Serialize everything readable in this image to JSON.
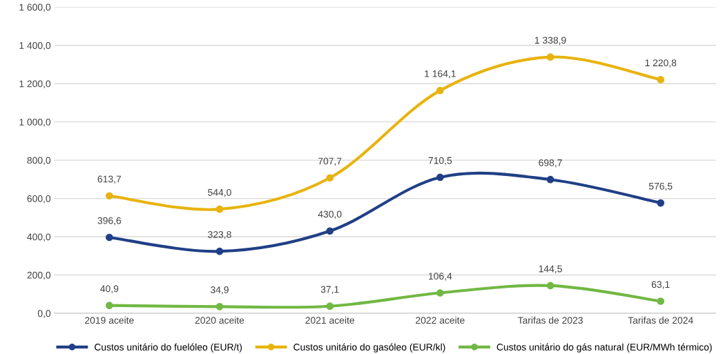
{
  "chart_data": {
    "type": "line",
    "categories": [
      "2019 aceite",
      "2020 aceite",
      "2021 aceite",
      "2022 aceite",
      "Tarifas de 2023",
      "Tarifas de 2024"
    ],
    "series": [
      {
        "name": "Custos unitário do fuelóleo (EUR/t)",
        "color": "#203f86",
        "values": [
          396.6,
          323.8,
          430.0,
          710.5,
          698.7,
          576.5
        ],
        "value_labels": [
          "396,6",
          "323,8",
          "430,0",
          "710,5",
          "698,7",
          "576,5"
        ]
      },
      {
        "name": "Custos unitário do gasóleo (EUR/kl)",
        "color": "#e8b30f",
        "values": [
          613.7,
          544.0,
          707.7,
          1164.1,
          1338.9,
          1220.8
        ],
        "value_labels": [
          "613,7",
          "544,0",
          "707,7",
          "1 164,1",
          "1 338,9",
          "1 220,8"
        ]
      },
      {
        "name": "Custos unitário do gás natural (EUR/MWh térmico)",
        "color": "#72b844",
        "values": [
          40.9,
          34.9,
          37.1,
          106.4,
          144.5,
          63.1
        ],
        "value_labels": [
          "40,9",
          "34,9",
          "37,1",
          "106,4",
          "144,5",
          "63,1"
        ]
      }
    ],
    "ylim": [
      0,
      1600
    ],
    "yticks": [
      {
        "value": 0,
        "label": "0,0"
      },
      {
        "value": 200,
        "label": "200,0"
      },
      {
        "value": 400,
        "label": "400,0"
      },
      {
        "value": 600,
        "label": "600,0"
      },
      {
        "value": 800,
        "label": "800,0"
      },
      {
        "value": 1000,
        "label": "1 000,0"
      },
      {
        "value": 1200,
        "label": "1 200,0"
      },
      {
        "value": 1400,
        "label": "1 400,0"
      },
      {
        "value": 1600,
        "label": "1 600,0"
      }
    ],
    "grid": "y",
    "legend": "bottom",
    "marker": "circle",
    "line_style": "solid"
  }
}
